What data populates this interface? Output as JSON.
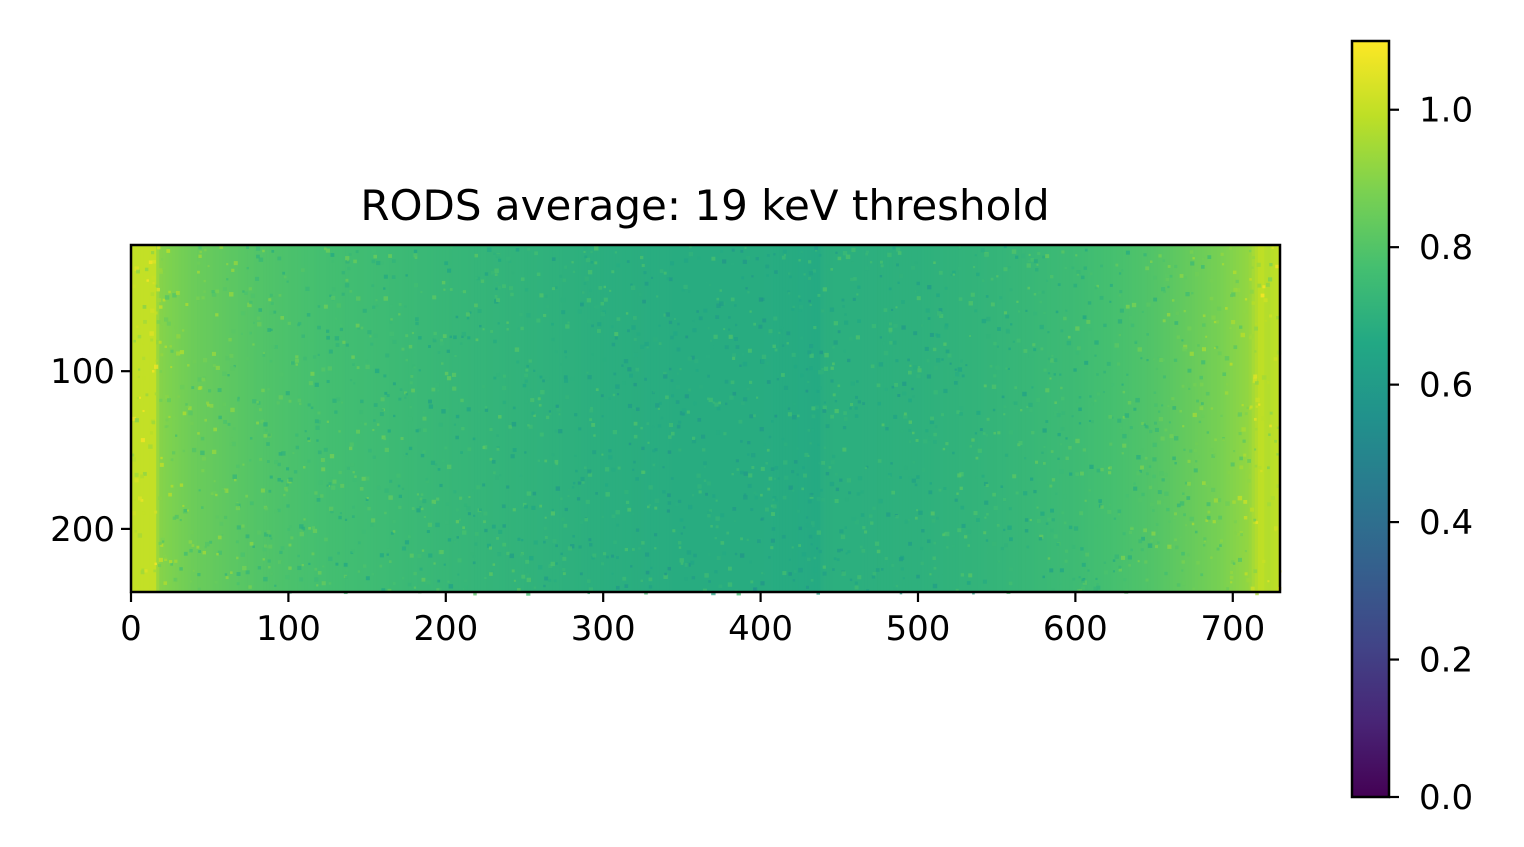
{
  "chart_data": {
    "type": "heatmap",
    "title": "RODS average: 19 keV threshold",
    "xlabel": "",
    "ylabel": "",
    "xlim": [
      0,
      730
    ],
    "ylim": [
      240,
      20
    ],
    "x_ticks": [
      0,
      100,
      200,
      300,
      400,
      500,
      600,
      700
    ],
    "x_tick_labels": [
      "0",
      "100",
      "200",
      "300",
      "400",
      "500",
      "600",
      "700"
    ],
    "y_ticks": [
      100,
      200
    ],
    "y_tick_labels": [
      "100",
      "200"
    ],
    "colormap": "viridis",
    "colorbar": {
      "range": [
        0.0,
        1.1
      ],
      "ticks": [
        0.0,
        0.2,
        0.4,
        0.6,
        0.8,
        1.0
      ],
      "tick_labels": [
        "0.0",
        "0.2",
        "0.4",
        "0.6",
        "0.8",
        "1.0"
      ]
    },
    "profile_x": [
      0,
      15,
      18,
      40,
      80,
      120,
      160,
      200,
      250,
      300,
      350,
      400,
      437,
      440,
      500,
      550,
      600,
      650,
      690,
      710,
      718,
      722,
      730
    ],
    "profile_value": [
      1.0,
      1.0,
      0.9,
      0.85,
      0.8,
      0.77,
      0.75,
      0.73,
      0.71,
      0.69,
      0.68,
      0.68,
      0.67,
      0.69,
      0.7,
      0.72,
      0.75,
      0.8,
      0.87,
      0.92,
      1.0,
      0.97,
      1.0
    ],
    "grid": false
  }
}
